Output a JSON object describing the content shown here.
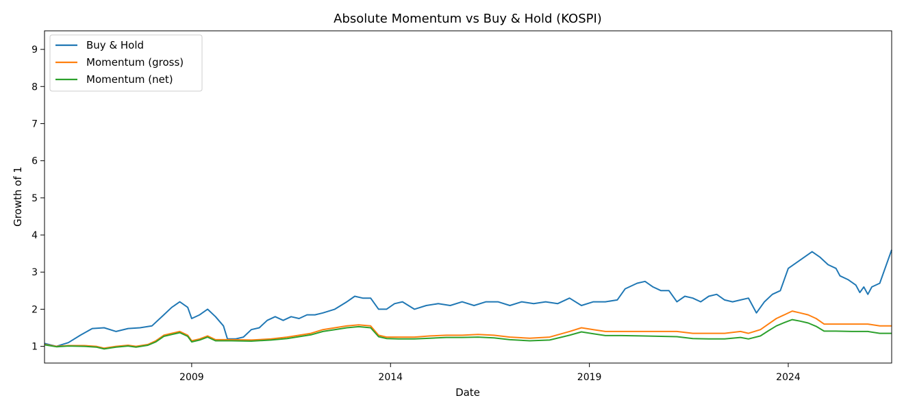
{
  "chart_data": {
    "type": "line",
    "title": "Absolute Momentum vs Buy & Hold (KOSPI)",
    "xlabel": "Date",
    "ylabel": "Growth of 1",
    "xlim": [
      2005.3,
      2026.6
    ],
    "ylim": [
      0.55,
      9.5
    ],
    "x_ticks": [
      2009,
      2014,
      2019,
      2024
    ],
    "x_tick_labels": [
      "2009",
      "2014",
      "2019",
      "2024"
    ],
    "y_ticks": [
      1,
      2,
      3,
      4,
      5,
      6,
      7,
      8,
      9
    ],
    "y_tick_labels": [
      "1",
      "2",
      "3",
      "4",
      "5",
      "6",
      "7",
      "8",
      "9"
    ],
    "grid": false,
    "legend_position": "top-left",
    "series": [
      {
        "name": "Buy & Hold",
        "color": "#1f77b4",
        "points": [
          [
            2005.3,
            1.08
          ],
          [
            2005.6,
            1.0
          ],
          [
            2005.9,
            1.1
          ],
          [
            2006.2,
            1.3
          ],
          [
            2006.5,
            1.48
          ],
          [
            2006.8,
            1.5
          ],
          [
            2007.1,
            1.4
          ],
          [
            2007.4,
            1.48
          ],
          [
            2007.7,
            1.5
          ],
          [
            2008.0,
            1.55
          ],
          [
            2008.3,
            1.85
          ],
          [
            2008.5,
            2.05
          ],
          [
            2008.7,
            2.2
          ],
          [
            2008.9,
            2.05
          ],
          [
            2009.0,
            1.75
          ],
          [
            2009.2,
            1.85
          ],
          [
            2009.4,
            2.0
          ],
          [
            2009.6,
            1.8
          ],
          [
            2009.8,
            1.55
          ],
          [
            2009.9,
            1.2
          ],
          [
            2010.1,
            1.2
          ],
          [
            2010.3,
            1.25
          ],
          [
            2010.5,
            1.45
          ],
          [
            2010.7,
            1.5
          ],
          [
            2010.9,
            1.7
          ],
          [
            2011.1,
            1.8
          ],
          [
            2011.3,
            1.7
          ],
          [
            2011.5,
            1.8
          ],
          [
            2011.7,
            1.75
          ],
          [
            2011.9,
            1.85
          ],
          [
            2012.1,
            1.85
          ],
          [
            2012.3,
            1.9
          ],
          [
            2012.6,
            2.0
          ],
          [
            2012.9,
            2.2
          ],
          [
            2013.1,
            2.35
          ],
          [
            2013.3,
            2.3
          ],
          [
            2013.5,
            2.3
          ],
          [
            2013.7,
            2.0
          ],
          [
            2013.9,
            2.0
          ],
          [
            2014.1,
            2.15
          ],
          [
            2014.3,
            2.2
          ],
          [
            2014.6,
            2.0
          ],
          [
            2014.9,
            2.1
          ],
          [
            2015.2,
            2.15
          ],
          [
            2015.5,
            2.1
          ],
          [
            2015.8,
            2.2
          ],
          [
            2016.1,
            2.1
          ],
          [
            2016.4,
            2.2
          ],
          [
            2016.7,
            2.2
          ],
          [
            2017.0,
            2.1
          ],
          [
            2017.3,
            2.2
          ],
          [
            2017.6,
            2.15
          ],
          [
            2017.9,
            2.2
          ],
          [
            2018.2,
            2.15
          ],
          [
            2018.5,
            2.3
          ],
          [
            2018.8,
            2.1
          ],
          [
            2019.1,
            2.2
          ],
          [
            2019.4,
            2.2
          ],
          [
            2019.7,
            2.25
          ],
          [
            2019.9,
            2.55
          ],
          [
            2020.2,
            2.7
          ],
          [
            2020.4,
            2.75
          ],
          [
            2020.6,
            2.6
          ],
          [
            2020.8,
            2.5
          ],
          [
            2021.0,
            2.5
          ],
          [
            2021.2,
            2.2
          ],
          [
            2021.4,
            2.35
          ],
          [
            2021.6,
            2.3
          ],
          [
            2021.8,
            2.2
          ],
          [
            2022.0,
            2.35
          ],
          [
            2022.2,
            2.4
          ],
          [
            2022.4,
            2.25
          ],
          [
            2022.6,
            2.2
          ],
          [
            2022.8,
            2.25
          ],
          [
            2023.0,
            2.3
          ],
          [
            2023.1,
            2.1
          ],
          [
            2023.2,
            1.9
          ],
          [
            2023.4,
            2.2
          ],
          [
            2023.6,
            2.4
          ],
          [
            2023.8,
            2.5
          ],
          [
            2023.9,
            2.8
          ],
          [
            2024.0,
            3.1
          ],
          [
            2024.2,
            3.25
          ],
          [
            2024.4,
            3.4
          ],
          [
            2024.6,
            3.55
          ],
          [
            2024.8,
            3.4
          ],
          [
            2025.0,
            3.2
          ],
          [
            2025.2,
            3.1
          ],
          [
            2025.3,
            2.9
          ],
          [
            2025.5,
            2.8
          ],
          [
            2025.7,
            2.65
          ],
          [
            2025.8,
            2.45
          ],
          [
            2025.9,
            2.6
          ],
          [
            2026.0,
            2.4
          ],
          [
            2026.1,
            2.6
          ],
          [
            2026.3,
            2.7
          ],
          [
            2026.6,
            3.6
          ]
        ]
      },
      {
        "name": "Momentum (gross)",
        "color": "#ff7f0e",
        "points": [
          [
            2005.3,
            1.05
          ],
          [
            2005.6,
            1.0
          ],
          [
            2005.9,
            1.02
          ],
          [
            2006.3,
            1.02
          ],
          [
            2006.6,
            1.0
          ],
          [
            2006.8,
            0.95
          ],
          [
            2007.1,
            1.0
          ],
          [
            2007.4,
            1.03
          ],
          [
            2007.6,
            1.0
          ],
          [
            2007.9,
            1.05
          ],
          [
            2008.1,
            1.15
          ],
          [
            2008.3,
            1.3
          ],
          [
            2008.5,
            1.35
          ],
          [
            2008.7,
            1.4
          ],
          [
            2008.9,
            1.3
          ],
          [
            2009.0,
            1.15
          ],
          [
            2009.2,
            1.2
          ],
          [
            2009.4,
            1.28
          ],
          [
            2009.6,
            1.18
          ],
          [
            2010.0,
            1.18
          ],
          [
            2010.5,
            1.17
          ],
          [
            2011.0,
            1.2
          ],
          [
            2011.4,
            1.25
          ],
          [
            2011.7,
            1.3
          ],
          [
            2012.0,
            1.35
          ],
          [
            2012.3,
            1.45
          ],
          [
            2012.6,
            1.5
          ],
          [
            2012.9,
            1.55
          ],
          [
            2013.2,
            1.58
          ],
          [
            2013.5,
            1.55
          ],
          [
            2013.7,
            1.3
          ],
          [
            2013.9,
            1.25
          ],
          [
            2014.2,
            1.25
          ],
          [
            2014.6,
            1.25
          ],
          [
            2015.0,
            1.28
          ],
          [
            2015.4,
            1.3
          ],
          [
            2015.8,
            1.3
          ],
          [
            2016.2,
            1.32
          ],
          [
            2016.6,
            1.3
          ],
          [
            2017.0,
            1.25
          ],
          [
            2017.5,
            1.22
          ],
          [
            2018.0,
            1.25
          ],
          [
            2018.5,
            1.4
          ],
          [
            2018.8,
            1.5
          ],
          [
            2019.1,
            1.45
          ],
          [
            2019.4,
            1.4
          ],
          [
            2019.8,
            1.4
          ],
          [
            2020.3,
            1.4
          ],
          [
            2020.8,
            1.4
          ],
          [
            2021.2,
            1.4
          ],
          [
            2021.6,
            1.35
          ],
          [
            2022.0,
            1.35
          ],
          [
            2022.4,
            1.35
          ],
          [
            2022.8,
            1.4
          ],
          [
            2023.0,
            1.35
          ],
          [
            2023.3,
            1.45
          ],
          [
            2023.5,
            1.6
          ],
          [
            2023.7,
            1.75
          ],
          [
            2023.9,
            1.85
          ],
          [
            2024.1,
            1.95
          ],
          [
            2024.3,
            1.9
          ],
          [
            2024.5,
            1.85
          ],
          [
            2024.7,
            1.75
          ],
          [
            2024.9,
            1.6
          ],
          [
            2025.2,
            1.6
          ],
          [
            2025.6,
            1.6
          ],
          [
            2026.0,
            1.6
          ],
          [
            2026.3,
            1.55
          ],
          [
            2026.6,
            1.55
          ]
        ]
      },
      {
        "name": "Momentum (net)",
        "color": "#2ca02c",
        "points": [
          [
            2005.3,
            1.04
          ],
          [
            2005.6,
            0.99
          ],
          [
            2005.9,
            1.01
          ],
          [
            2006.3,
            1.0
          ],
          [
            2006.6,
            0.98
          ],
          [
            2006.8,
            0.93
          ],
          [
            2007.1,
            0.98
          ],
          [
            2007.4,
            1.01
          ],
          [
            2007.6,
            0.98
          ],
          [
            2007.9,
            1.03
          ],
          [
            2008.1,
            1.12
          ],
          [
            2008.3,
            1.27
          ],
          [
            2008.5,
            1.32
          ],
          [
            2008.7,
            1.37
          ],
          [
            2008.9,
            1.27
          ],
          [
            2009.0,
            1.12
          ],
          [
            2009.2,
            1.17
          ],
          [
            2009.4,
            1.25
          ],
          [
            2009.6,
            1.15
          ],
          [
            2010.0,
            1.15
          ],
          [
            2010.5,
            1.14
          ],
          [
            2011.0,
            1.17
          ],
          [
            2011.4,
            1.21
          ],
          [
            2011.7,
            1.26
          ],
          [
            2012.0,
            1.31
          ],
          [
            2012.3,
            1.4
          ],
          [
            2012.6,
            1.45
          ],
          [
            2012.9,
            1.5
          ],
          [
            2013.2,
            1.53
          ],
          [
            2013.5,
            1.5
          ],
          [
            2013.7,
            1.26
          ],
          [
            2013.9,
            1.21
          ],
          [
            2014.2,
            1.2
          ],
          [
            2014.6,
            1.2
          ],
          [
            2015.0,
            1.22
          ],
          [
            2015.4,
            1.24
          ],
          [
            2015.8,
            1.24
          ],
          [
            2016.2,
            1.25
          ],
          [
            2016.6,
            1.23
          ],
          [
            2017.0,
            1.18
          ],
          [
            2017.5,
            1.15
          ],
          [
            2018.0,
            1.17
          ],
          [
            2018.5,
            1.3
          ],
          [
            2018.8,
            1.39
          ],
          [
            2019.1,
            1.34
          ],
          [
            2019.4,
            1.29
          ],
          [
            2019.8,
            1.29
          ],
          [
            2020.3,
            1.28
          ],
          [
            2020.8,
            1.27
          ],
          [
            2021.2,
            1.26
          ],
          [
            2021.6,
            1.21
          ],
          [
            2022.0,
            1.2
          ],
          [
            2022.4,
            1.2
          ],
          [
            2022.8,
            1.24
          ],
          [
            2023.0,
            1.2
          ],
          [
            2023.3,
            1.28
          ],
          [
            2023.5,
            1.42
          ],
          [
            2023.7,
            1.55
          ],
          [
            2023.9,
            1.64
          ],
          [
            2024.1,
            1.72
          ],
          [
            2024.3,
            1.68
          ],
          [
            2024.5,
            1.63
          ],
          [
            2024.7,
            1.54
          ],
          [
            2024.9,
            1.41
          ],
          [
            2025.2,
            1.41
          ],
          [
            2025.6,
            1.4
          ],
          [
            2026.0,
            1.4
          ],
          [
            2026.3,
            1.35
          ],
          [
            2026.6,
            1.35
          ]
        ]
      }
    ]
  }
}
